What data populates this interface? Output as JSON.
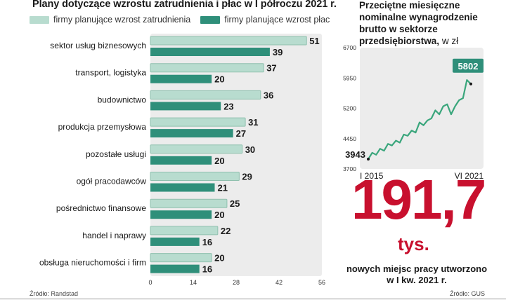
{
  "left_chart": {
    "title": "Plany dotyczące wzrostu zatrudnienia i płac w I półroczu 2021 r.",
    "source": "Źródło: Randstad",
    "colors": {
      "light": "#b8dccf",
      "dark": "#2f8f7a",
      "light_edge": "#8fc0ae"
    }
  },
  "right_chart": {
    "title": "Przeciętne miesięczne nominalne wynagrodzenie brutto w sektorze przedsiębiorstwa,",
    "unit": "w zł",
    "big_number": "191,7",
    "big_unit": "tys.",
    "caption": "nowych  miejsc pracy utworzono w I kw. 2021 r.",
    "source": "Źródło: GUS",
    "colors": {
      "line": "#3aa67c",
      "area": "#ececec",
      "badge": "#2f8f7a",
      "accent": "#c8102e"
    }
  },
  "chart_data": [
    {
      "type": "bar",
      "orientation": "horizontal",
      "categories": [
        "sektor usług biznesowych",
        "transport, logistyka",
        "budownictwo",
        "produkcja przemysłowa",
        "pozostałe usługi",
        "ogół pracodawców",
        "pośrednictwo finansowe",
        "handel i naprawy",
        "obsługa nieruchomości i firm"
      ],
      "series": [
        {
          "name": "firmy planujące wzrost zatrudnienia",
          "values": [
            51,
            37,
            36,
            31,
            30,
            29,
            25,
            22,
            20
          ]
        },
        {
          "name": "firmy planujące wzrost płac",
          "values": [
            39,
            20,
            23,
            27,
            20,
            21,
            20,
            16,
            16
          ]
        }
      ],
      "xlim": [
        0,
        56
      ],
      "xticks": [
        "0",
        "14",
        "28",
        "42",
        "56"
      ],
      "legend": "top"
    },
    {
      "type": "line",
      "x_labels": [
        "I 2015",
        "VI 2021"
      ],
      "ylim": [
        3700,
        6700
      ],
      "yticks": [
        "6700",
        "5950",
        "5200",
        "4450",
        "3700"
      ],
      "start_value": 3943,
      "end_value": 5802,
      "annotations": [
        "3943",
        "5802"
      ],
      "x": [
        "2015-01",
        "2015-04",
        "2015-07",
        "2015-10",
        "2016-01",
        "2016-04",
        "2016-07",
        "2016-10",
        "2017-01",
        "2017-04",
        "2017-07",
        "2017-10",
        "2018-01",
        "2018-04",
        "2018-07",
        "2018-10",
        "2019-01",
        "2019-04",
        "2019-07",
        "2019-10",
        "2020-01",
        "2020-04",
        "2020-07",
        "2020-10",
        "2021-01",
        "2021-04",
        "2021-06"
      ],
      "values": [
        3943,
        4100,
        4050,
        4200,
        4150,
        4320,
        4280,
        4400,
        4350,
        4550,
        4520,
        4650,
        4600,
        4850,
        4780,
        4900,
        4950,
        5150,
        5050,
        5250,
        5300,
        5050,
        5250,
        5400,
        5450,
        5900,
        5802
      ]
    }
  ]
}
